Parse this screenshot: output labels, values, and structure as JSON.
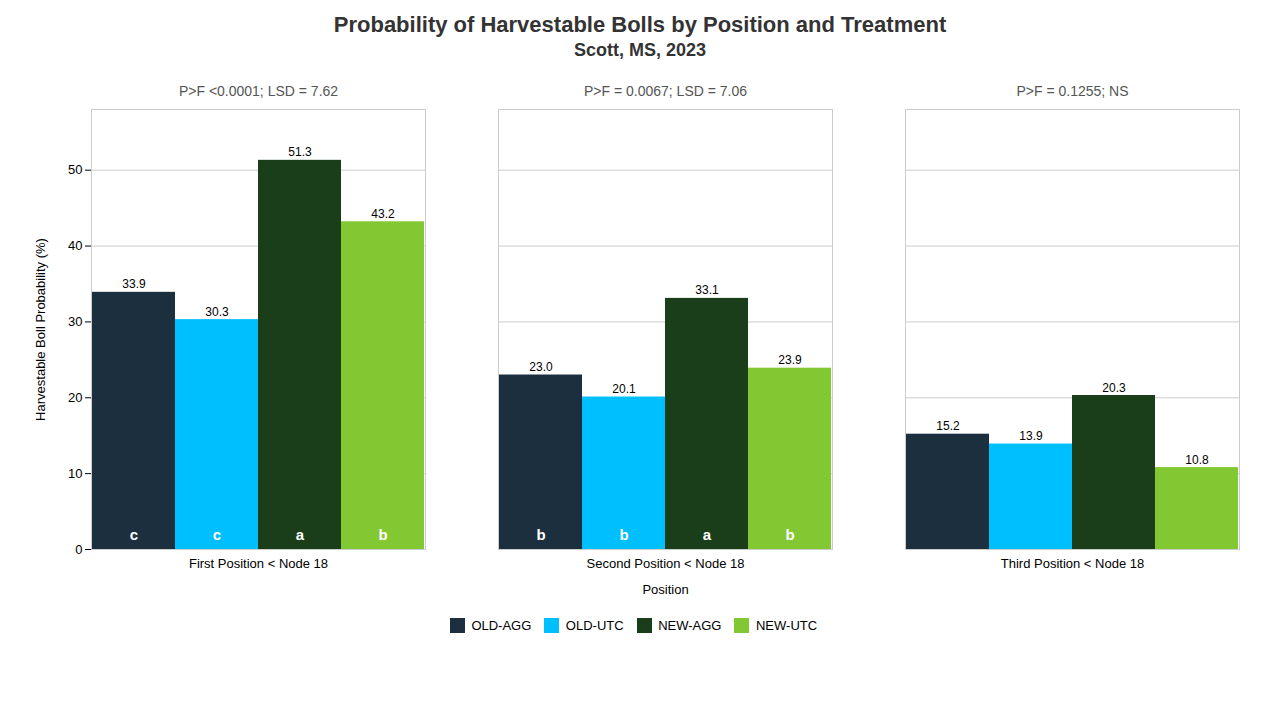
{
  "chart_data": {
    "type": "bar",
    "title": "Probability of Harvestable Bolls by Position and Treatment",
    "subtitle": "Scott, MS, 2023",
    "categories": [
      "First Position < Node 18",
      "Second Position < Node 18",
      "Third Position < Node 18"
    ],
    "series": [
      {
        "name": "OLD-AGG",
        "color": "#1c2f3e",
        "values": [
          33.9,
          23.0,
          15.2
        ],
        "value_labels": [
          "33.9",
          "23.0",
          "15.2"
        ],
        "letters": [
          "c",
          "b",
          null
        ]
      },
      {
        "name": "OLD-UTC",
        "color": "#00bfff",
        "values": [
          30.3,
          20.1,
          13.9
        ],
        "value_labels": [
          "30.3",
          "20.1",
          "13.9"
        ],
        "letters": [
          "c",
          "b",
          null
        ]
      },
      {
        "name": "NEW-AGG",
        "color": "#1a3d1a",
        "values": [
          51.3,
          33.1,
          20.3
        ],
        "value_labels": [
          "51.3",
          "33.1",
          "20.3"
        ],
        "letters": [
          "a",
          "a",
          null
        ]
      },
      {
        "name": "NEW-UTC",
        "color": "#82c832",
        "values": [
          43.2,
          23.9,
          10.8
        ],
        "value_labels": [
          "43.2",
          "23.9",
          "10.8"
        ],
        "letters": [
          "b",
          "b",
          null
        ]
      }
    ],
    "annotations": [
      "P>F <0.0001; LSD = 7.62",
      "P>F = 0.0067; LSD = 7.06",
      "P>F = 0.1255; NS"
    ],
    "xlabel": "Position",
    "ylabel": "Harvestable Boll Probability (%)",
    "ylim": [
      0,
      58
    ],
    "yticks": [
      0,
      10,
      20,
      30,
      40,
      50
    ],
    "grid": true,
    "legend": "bottom",
    "data_labels": true
  }
}
